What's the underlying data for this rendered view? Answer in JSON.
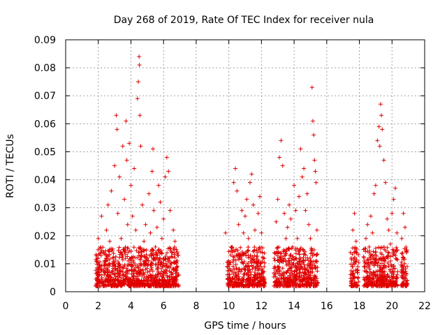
{
  "chart_data": {
    "type": "scatter",
    "title": "Day 268 of 2019, Rate Of TEC Index for receiver nula",
    "xlabel": "GPS time / hours",
    "ylabel": "ROTI / TECUs",
    "xlim": [
      0,
      22
    ],
    "ylim": [
      0,
      0.09
    ],
    "x_ticks": [
      0,
      2,
      4,
      6,
      8,
      10,
      12,
      14,
      16,
      18,
      20,
      22
    ],
    "y_ticks": [
      0,
      0.01,
      0.02,
      0.03,
      0.04,
      0.05,
      0.06,
      0.07,
      0.08,
      0.09
    ],
    "x_tick_labels": [
      "0",
      "2",
      "4",
      "6",
      "8",
      "10",
      "12",
      "14",
      "16",
      "18",
      "20",
      "22"
    ],
    "y_tick_labels": [
      "0",
      "0.01",
      "0.02",
      "0.03",
      "0.04",
      "0.05",
      "0.06",
      "0.07",
      "0.08",
      "0.09"
    ],
    "grid": true,
    "marker": "+",
    "series_color": "#e00000",
    "series": [
      {
        "name": "ROTI",
        "points": [
          [
            1.9,
            0.011
          ],
          [
            2.0,
            0.019
          ],
          [
            2.1,
            0.009
          ],
          [
            2.2,
            0.027
          ],
          [
            2.3,
            0.014
          ],
          [
            2.4,
            0.007
          ],
          [
            2.5,
            0.022
          ],
          [
            2.6,
            0.031
          ],
          [
            2.7,
            0.018
          ],
          [
            2.8,
            0.036
          ],
          [
            2.9,
            0.012
          ],
          [
            3.0,
            0.045
          ],
          [
            3.1,
            0.063
          ],
          [
            3.15,
            0.058
          ],
          [
            3.2,
            0.028
          ],
          [
            3.3,
            0.041
          ],
          [
            3.4,
            0.019
          ],
          [
            3.5,
            0.052
          ],
          [
            3.6,
            0.033
          ],
          [
            3.7,
            0.061
          ],
          [
            3.75,
            0.047
          ],
          [
            3.8,
            0.024
          ],
          [
            3.9,
            0.053
          ],
          [
            4.0,
            0.038
          ],
          [
            4.1,
            0.027
          ],
          [
            4.2,
            0.044
          ],
          [
            4.3,
            0.022
          ],
          [
            4.4,
            0.069
          ],
          [
            4.45,
            0.075
          ],
          [
            4.5,
            0.084
          ],
          [
            4.52,
            0.081
          ],
          [
            4.55,
            0.063
          ],
          [
            4.6,
            0.052
          ],
          [
            4.7,
            0.031
          ],
          [
            4.8,
            0.018
          ],
          [
            4.9,
            0.024
          ],
          [
            5.0,
            0.012
          ],
          [
            5.1,
            0.035
          ],
          [
            5.2,
            0.021
          ],
          [
            5.3,
            0.043
          ],
          [
            5.35,
            0.051
          ],
          [
            5.4,
            0.029
          ],
          [
            5.5,
            0.016
          ],
          [
            5.6,
            0.023
          ],
          [
            5.7,
            0.038
          ],
          [
            5.8,
            0.032
          ],
          [
            5.9,
            0.019
          ],
          [
            6.0,
            0.026
          ],
          [
            6.1,
            0.041
          ],
          [
            6.2,
            0.048
          ],
          [
            6.3,
            0.043
          ],
          [
            6.4,
            0.029
          ],
          [
            6.5,
            0.014
          ],
          [
            6.6,
            0.022
          ],
          [
            6.7,
            0.018
          ],
          [
            6.8,
            0.011
          ],
          [
            6.9,
            0.006
          ],
          [
            9.8,
            0.021
          ],
          [
            9.9,
            0.009
          ],
          [
            10.0,
            0.006
          ],
          [
            10.2,
            0.016
          ],
          [
            10.3,
            0.039
          ],
          [
            10.4,
            0.044
          ],
          [
            10.5,
            0.036
          ],
          [
            10.6,
            0.024
          ],
          [
            10.7,
            0.013
          ],
          [
            10.8,
            0.029
          ],
          [
            10.9,
            0.021
          ],
          [
            11.0,
            0.027
          ],
          [
            11.1,
            0.033
          ],
          [
            11.2,
            0.019
          ],
          [
            11.3,
            0.039
          ],
          [
            11.4,
            0.042
          ],
          [
            11.5,
            0.031
          ],
          [
            11.6,
            0.022
          ],
          [
            11.7,
            0.015
          ],
          [
            11.8,
            0.028
          ],
          [
            11.9,
            0.034
          ],
          [
            12.0,
            0.021
          ],
          [
            12.1,
            0.012
          ],
          [
            12.8,
            0.014
          ],
          [
            12.9,
            0.025
          ],
          [
            13.0,
            0.033
          ],
          [
            13.1,
            0.048
          ],
          [
            13.2,
            0.054
          ],
          [
            13.3,
            0.045
          ],
          [
            13.4,
            0.028
          ],
          [
            13.5,
            0.019
          ],
          [
            13.6,
            0.023
          ],
          [
            13.7,
            0.031
          ],
          [
            13.8,
            0.026
          ],
          [
            13.9,
            0.016
          ],
          [
            14.0,
            0.038
          ],
          [
            14.1,
            0.029
          ],
          [
            14.2,
            0.019
          ],
          [
            14.3,
            0.034
          ],
          [
            14.4,
            0.051
          ],
          [
            14.5,
            0.041
          ],
          [
            14.6,
            0.044
          ],
          [
            14.7,
            0.029
          ],
          [
            14.8,
            0.035
          ],
          [
            14.9,
            0.024
          ],
          [
            15.0,
            0.019
          ],
          [
            15.1,
            0.073
          ],
          [
            15.15,
            0.061
          ],
          [
            15.2,
            0.056
          ],
          [
            15.25,
            0.047
          ],
          [
            15.3,
            0.043
          ],
          [
            15.35,
            0.039
          ],
          [
            15.4,
            0.022
          ],
          [
            17.5,
            0.012
          ],
          [
            17.6,
            0.022
          ],
          [
            17.7,
            0.028
          ],
          [
            17.8,
            0.018
          ],
          [
            17.9,
            0.009
          ],
          [
            18.3,
            0.011
          ],
          [
            18.4,
            0.019
          ],
          [
            18.5,
            0.024
          ],
          [
            18.6,
            0.016
          ],
          [
            18.7,
            0.027
          ],
          [
            18.8,
            0.021
          ],
          [
            18.9,
            0.035
          ],
          [
            19.0,
            0.038
          ],
          [
            19.1,
            0.054
          ],
          [
            19.2,
            0.059
          ],
          [
            19.25,
            0.052
          ],
          [
            19.3,
            0.067
          ],
          [
            19.35,
            0.063
          ],
          [
            19.4,
            0.058
          ],
          [
            19.5,
            0.047
          ],
          [
            19.6,
            0.039
          ],
          [
            19.7,
            0.026
          ],
          [
            19.8,
            0.022
          ],
          [
            19.9,
            0.017
          ],
          [
            20.0,
            0.028
          ],
          [
            20.1,
            0.033
          ],
          [
            20.2,
            0.037
          ],
          [
            20.3,
            0.021
          ],
          [
            20.6,
            0.019
          ],
          [
            20.7,
            0.028
          ],
          [
            20.8,
            0.023
          ],
          [
            20.9,
            0.014
          ]
        ]
      }
    ],
    "dense_band": {
      "description": "dense base cluster of low ROTI values during each observation window",
      "segments": [
        [
          1.85,
          6.95
        ],
        [
          9.9,
          12.2
        ],
        [
          12.75,
          15.45
        ],
        [
          17.45,
          17.95
        ],
        [
          18.25,
          20.35
        ],
        [
          20.55,
          20.95
        ]
      ],
      "y_range": [
        0.002,
        0.016
      ]
    }
  }
}
